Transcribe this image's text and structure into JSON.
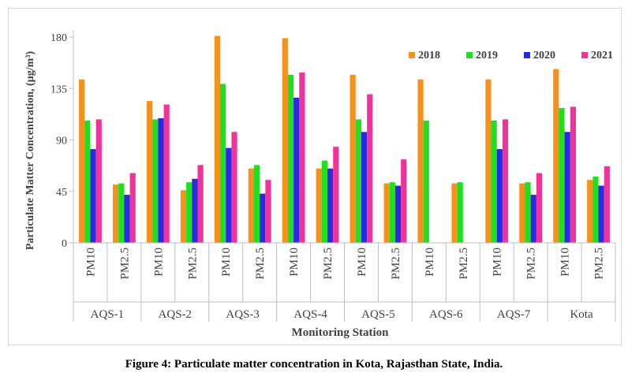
{
  "caption": "Figure 4: Particulate matter concentration in Kota, Rajasthan State, India.",
  "chart_data": {
    "type": "bar",
    "title": "",
    "xlabel": "Monitoring Station",
    "ylabel": "Particulate Matter Concentration, (µg/m³)",
    "ylim": [
      0,
      180
    ],
    "yticks": [
      0,
      45,
      90,
      135,
      180
    ],
    "grid": false,
    "legend_position": "top-right",
    "groups": [
      "AQS-1",
      "AQS-2",
      "AQS-3",
      "AQS-4",
      "AQS-5",
      "AQS-6",
      "AQS-7",
      "Kota"
    ],
    "subcategories": [
      "PM10",
      "PM2.5"
    ],
    "categories": [
      "AQS-1 PM10",
      "AQS-1 PM2.5",
      "AQS-2 PM10",
      "AQS-2 PM2.5",
      "AQS-3 PM10",
      "AQS-3 PM2.5",
      "AQS-4 PM10",
      "AQS-4 PM2.5",
      "AQS-5 PM10",
      "AQS-5 PM2.5",
      "AQS-6 PM10",
      "AQS-6 PM2.5",
      "AQS-7 PM10",
      "AQS-7 PM2.5",
      "Kota PM10",
      "Kota PM2.5"
    ],
    "series": [
      {
        "name": "2018",
        "color": "#F5921E",
        "values": [
          143,
          51,
          124,
          46,
          181,
          65,
          179,
          65,
          147,
          52,
          143,
          52,
          143,
          52,
          152,
          55
        ]
      },
      {
        "name": "2019",
        "color": "#1FE01F",
        "values": [
          107,
          52,
          108,
          53,
          139,
          68,
          147,
          72,
          108,
          53,
          107,
          53,
          107,
          53,
          118,
          58
        ]
      },
      {
        "name": "2020",
        "color": "#2A2AE6",
        "values": [
          82,
          42,
          109,
          56,
          83,
          43,
          127,
          65,
          97,
          50,
          null,
          null,
          82,
          42,
          97,
          50
        ]
      },
      {
        "name": "2021",
        "color": "#F0329B",
        "values": [
          108,
          61,
          121,
          68,
          97,
          55,
          149,
          84,
          130,
          73,
          null,
          null,
          108,
          61,
          119,
          67
        ]
      }
    ]
  }
}
